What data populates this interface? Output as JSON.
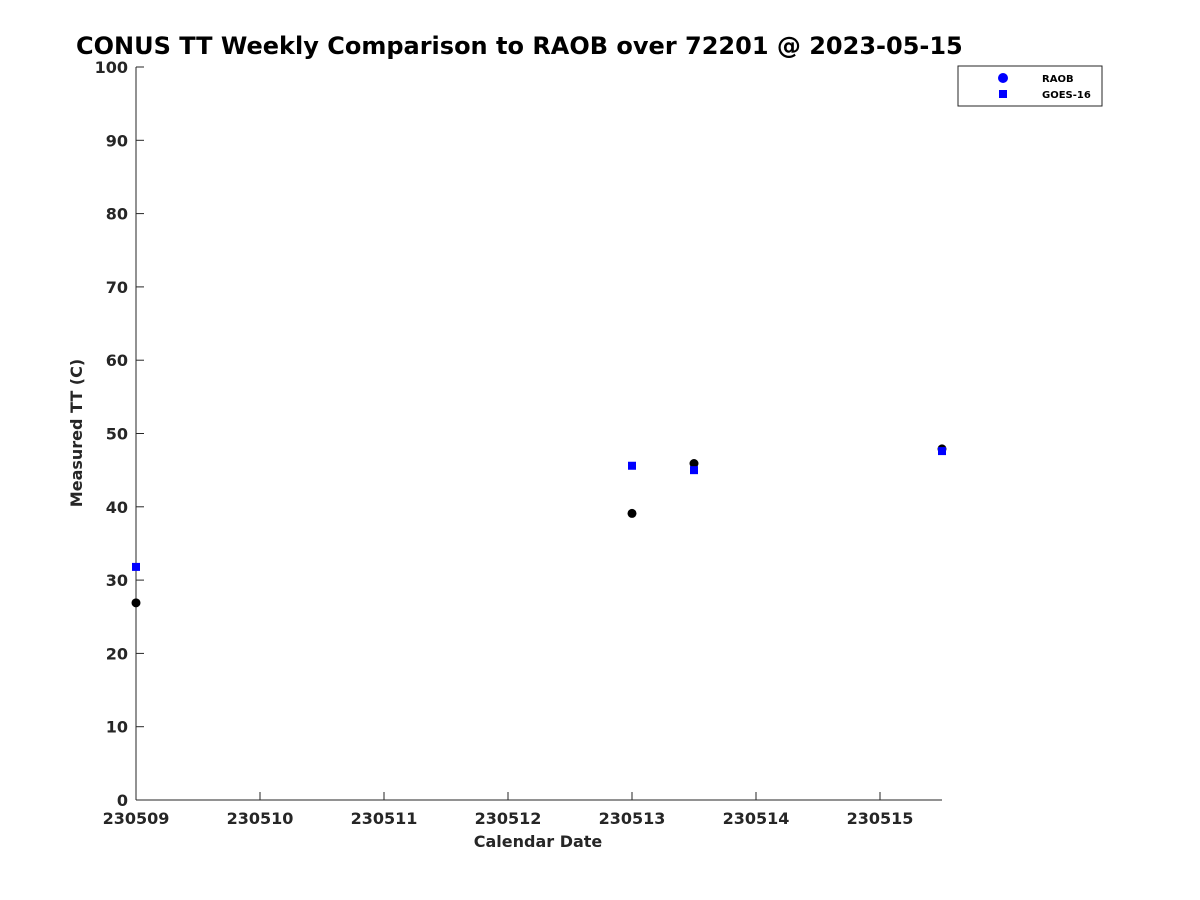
{
  "chart_data": {
    "type": "scatter",
    "title": "CONUS TT Weekly Comparison to RAOB over 72201 @ 2023-05-15",
    "xlabel": "Calendar Date",
    "ylabel": "Measured TT (C)",
    "xlim": [
      "2023-05-09T00:00",
      "2023-05-15T12:00"
    ],
    "ylim": [
      0,
      100
    ],
    "x_ticks": [
      {
        "value": "2023-05-09T00:00",
        "label": "230509"
      },
      {
        "value": "2023-05-10T00:00",
        "label": "230510"
      },
      {
        "value": "2023-05-11T00:00",
        "label": "230511"
      },
      {
        "value": "2023-05-12T00:00",
        "label": "230512"
      },
      {
        "value": "2023-05-13T00:00",
        "label": "230513"
      },
      {
        "value": "2023-05-14T00:00",
        "label": "230514"
      },
      {
        "value": "2023-05-15T00:00",
        "label": "230515"
      }
    ],
    "y_ticks": [
      0,
      10,
      20,
      30,
      40,
      50,
      60,
      70,
      80,
      90,
      100
    ],
    "grid": false,
    "legend_position": "top-right",
    "series": [
      {
        "name": "RAOB",
        "marker": "circle",
        "color": "#000000",
        "legend_color": "#0000ff",
        "points": [
          {
            "x": "2023-05-09T00:00",
            "y": 26.9
          },
          {
            "x": "2023-05-13T00:00",
            "y": 39.1
          },
          {
            "x": "2023-05-13T12:00",
            "y": 45.9
          },
          {
            "x": "2023-05-15T12:00",
            "y": 47.9
          }
        ]
      },
      {
        "name": "GOES-16",
        "marker": "square",
        "color": "#0000ff",
        "legend_color": "#0000ff",
        "points": [
          {
            "x": "2023-05-09T00:00",
            "y": 31.8
          },
          {
            "x": "2023-05-13T00:00",
            "y": 45.6
          },
          {
            "x": "2023-05-13T12:00",
            "y": 45.0
          },
          {
            "x": "2023-05-15T12:00",
            "y": 47.6
          }
        ]
      }
    ]
  }
}
